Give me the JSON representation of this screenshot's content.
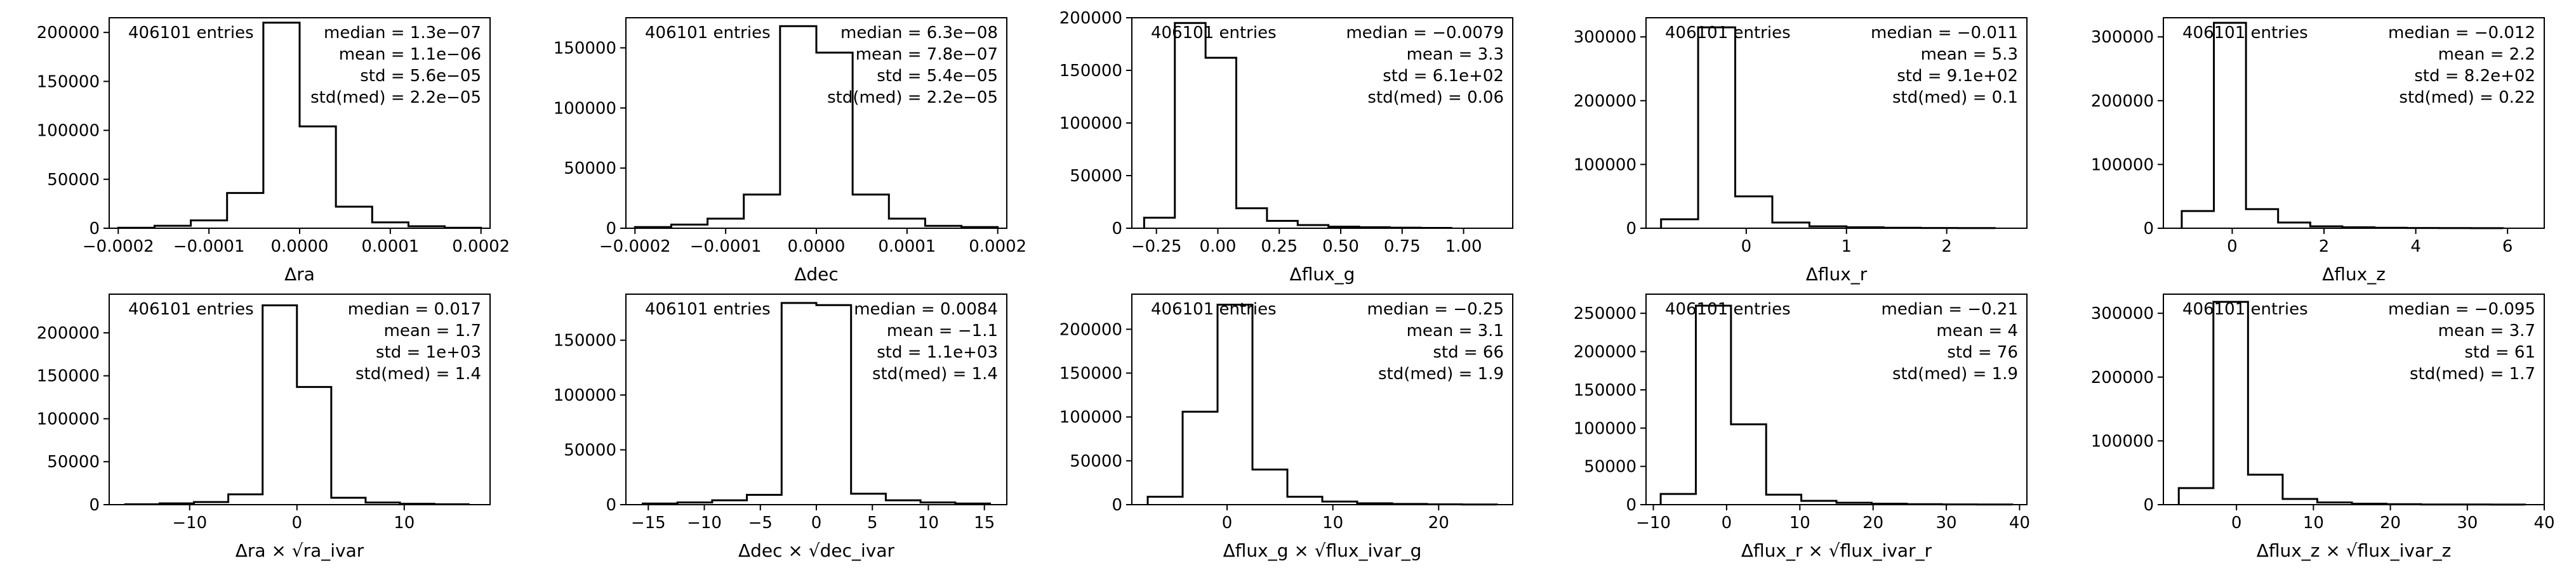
{
  "chart_data": [
    {
      "type": "histogram",
      "entries_text": "406101 entries",
      "stats": [
        "median = 1.3e−07",
        "mean = 1.1e−06",
        "std = 5.6e−05",
        "std(med) = 2.2e−05"
      ],
      "xlabel": "Δra",
      "xlim": [
        -0.00021,
        0.00021
      ],
      "ylim": [
        0,
        215000
      ],
      "xticks": [
        -0.0002,
        -0.0001,
        0,
        0.0001,
        0.0002
      ],
      "xtick_labels": [
        "−0.0002",
        "−0.0001",
        "0.0000",
        "0.0001",
        "0.0002"
      ],
      "yticks": [
        0,
        50000,
        100000,
        150000,
        200000
      ],
      "ytick_labels": [
        "0",
        "50000",
        "100000",
        "150000",
        "200000"
      ],
      "bin_edges": [
        -0.0002,
        -0.00016,
        -0.00012,
        -8e-05,
        -4e-05,
        0,
        4e-05,
        8e-05,
        0.00012,
        0.00016,
        0.0002
      ],
      "counts": [
        500,
        2500,
        8000,
        36000,
        210000,
        104000,
        22000,
        6000,
        2000,
        500
      ]
    },
    {
      "type": "histogram",
      "entries_text": "406101 entries",
      "stats": [
        "median = 6.3e−08",
        "mean = 7.8e−07",
        "std = 5.4e−05",
        "std(med) = 2.2e−05"
      ],
      "xlabel": "Δdec",
      "xlim": [
        -0.00021,
        0.00021
      ],
      "ylim": [
        0,
        175000
      ],
      "xticks": [
        -0.0002,
        -0.0001,
        0,
        0.0001,
        0.0002
      ],
      "xtick_labels": [
        "−0.0002",
        "−0.0001",
        "0.0000",
        "0.0001",
        "0.0002"
      ],
      "yticks": [
        0,
        50000,
        100000,
        150000
      ],
      "ytick_labels": [
        "0",
        "50000",
        "100000",
        "150000"
      ],
      "bin_edges": [
        -0.0002,
        -0.00016,
        -0.00012,
        -8e-05,
        -4e-05,
        0,
        4e-05,
        8e-05,
        0.00012,
        0.00016,
        0.0002
      ],
      "counts": [
        1000,
        3000,
        8000,
        28000,
        168000,
        146000,
        28000,
        8000,
        2000,
        1000
      ]
    },
    {
      "type": "histogram",
      "entries_text": "406101 entries",
      "stats": [
        "median = −0.0079",
        "mean = 3.3",
        "std = 6.1e+02",
        "std(med) = 0.06"
      ],
      "xlabel": "Δflux_g",
      "xlim": [
        -0.35,
        1.2
      ],
      "ylim": [
        0,
        200000
      ],
      "xticks": [
        -0.25,
        0,
        0.25,
        0.5,
        0.75,
        1.0
      ],
      "xtick_labels": [
        "−0.25",
        "0.00",
        "0.25",
        "0.50",
        "0.75",
        "1.00"
      ],
      "yticks": [
        0,
        50000,
        100000,
        150000,
        200000
      ],
      "ytick_labels": [
        "0",
        "50000",
        "100000",
        "150000",
        "200000"
      ],
      "bin_edges": [
        -0.3,
        -0.175,
        -0.05,
        0.075,
        0.2,
        0.325,
        0.45,
        0.575,
        0.7,
        0.825,
        0.95
      ],
      "counts": [
        10000,
        195000,
        162000,
        19000,
        7000,
        3000,
        1500,
        1000,
        500,
        300
      ]
    },
    {
      "type": "histogram",
      "entries_text": "406101 entries",
      "stats": [
        "median = −0.011",
        "mean = 5.3",
        "std = 9.1e+02",
        "std(med) = 0.1"
      ],
      "xlabel": "Δflux_r",
      "xlim": [
        -1.0,
        2.8
      ],
      "ylim": [
        0,
        330000
      ],
      "xticks": [
        0,
        1,
        2
      ],
      "xtick_labels": [
        "0",
        "1",
        "2"
      ],
      "yticks": [
        0,
        100000,
        200000,
        300000
      ],
      "ytick_labels": [
        "0",
        "100000",
        "200000",
        "300000"
      ],
      "bin_edges": [
        -0.85,
        -0.48,
        -0.11,
        0.26,
        0.63,
        1.0,
        1.37,
        1.74,
        2.11,
        2.48
      ],
      "counts": [
        14000,
        315000,
        50000,
        9000,
        3000,
        1500,
        800,
        400,
        200
      ]
    },
    {
      "type": "histogram",
      "entries_text": "406101 entries",
      "stats": [
        "median = −0.012",
        "mean = 2.2",
        "std = 8.2e+02",
        "std(med) = 0.22"
      ],
      "xlabel": "Δflux_z",
      "xlim": [
        -1.5,
        6.8
      ],
      "ylim": [
        0,
        330000
      ],
      "xticks": [
        0,
        2,
        4,
        6
      ],
      "xtick_labels": [
        "0",
        "2",
        "4",
        "6"
      ],
      "yticks": [
        0,
        100000,
        200000,
        300000
      ],
      "ytick_labels": [
        "0",
        "100000",
        "200000",
        "300000"
      ],
      "bin_edges": [
        -1.1,
        -0.4,
        0.3,
        1.0,
        1.7,
        2.4,
        3.1,
        3.8,
        4.5,
        5.2,
        5.9
      ],
      "counts": [
        27000,
        322000,
        30000,
        9000,
        3000,
        1500,
        800,
        400,
        200,
        100
      ]
    },
    {
      "type": "histogram",
      "entries_text": "406101 entries",
      "stats": [
        "median = 0.017",
        "mean = 1.7",
        "std = 1e+03",
        "std(med) = 1.4"
      ],
      "xlabel": "Δra × √ra_ivar",
      "xlim": [
        -17.5,
        18
      ],
      "ylim": [
        0,
        245000
      ],
      "xticks": [
        -10,
        0,
        10
      ],
      "xtick_labels": [
        "−10",
        "0",
        "10"
      ],
      "yticks": [
        0,
        50000,
        100000,
        150000,
        200000
      ],
      "ytick_labels": [
        "0",
        "50000",
        "100000",
        "150000",
        "200000"
      ],
      "bin_edges": [
        -16,
        -12.8,
        -9.6,
        -6.4,
        -3.2,
        0,
        3.2,
        6.4,
        9.6,
        12.8,
        16
      ],
      "counts": [
        500,
        1500,
        3000,
        12000,
        232000,
        137000,
        8000,
        2500,
        1000,
        500
      ]
    },
    {
      "type": "histogram",
      "entries_text": "406101 entries",
      "stats": [
        "median = 0.0084",
        "mean = −1.1",
        "std = 1.1e+03",
        "std(med) = 1.4"
      ],
      "xlabel": "Δdec × √dec_ivar",
      "xlim": [
        -17,
        17
      ],
      "ylim": [
        0,
        192000
      ],
      "xticks": [
        -15,
        -10,
        -5,
        0,
        5,
        10,
        15
      ],
      "xtick_labels": [
        "−15",
        "−10",
        "−5",
        "0",
        "5",
        "10",
        "15"
      ],
      "yticks": [
        0,
        50000,
        100000,
        150000
      ],
      "ytick_labels": [
        "0",
        "50000",
        "100000",
        "150000"
      ],
      "bin_edges": [
        -15.5,
        -12.4,
        -9.3,
        -6.2,
        -3.1,
        0,
        3.1,
        6.2,
        9.3,
        12.4,
        15.5
      ],
      "counts": [
        1000,
        2000,
        4000,
        9000,
        184000,
        182000,
        10000,
        4000,
        2000,
        1000
      ]
    },
    {
      "type": "histogram",
      "entries_text": "406101 entries",
      "stats": [
        "median = −0.25",
        "mean = 3.1",
        "std = 66",
        "std(med) = 1.9"
      ],
      "xlabel": "Δflux_g × √flux_ivar_g",
      "xlim": [
        -9,
        27
      ],
      "ylim": [
        0,
        240000
      ],
      "xticks": [
        0,
        10,
        20
      ],
      "xtick_labels": [
        "0",
        "10",
        "20"
      ],
      "yticks": [
        0,
        50000,
        100000,
        150000,
        200000
      ],
      "ytick_labels": [
        "0",
        "50000",
        "100000",
        "150000",
        "200000"
      ],
      "bin_edges": [
        -7.5,
        -4.2,
        -0.9,
        2.4,
        5.7,
        9.0,
        12.3,
        15.6,
        18.9,
        22.2,
        25.5
      ],
      "counts": [
        9000,
        106000,
        228000,
        40000,
        9000,
        3500,
        1500,
        800,
        400,
        200
      ]
    },
    {
      "type": "histogram",
      "entries_text": "406101 entries",
      "stats": [
        "median = −0.21",
        "mean = 4",
        "std = 76",
        "std(med) = 1.9"
      ],
      "xlabel": "Δflux_r × √flux_ivar_r",
      "xlim": [
        -11,
        41
      ],
      "ylim": [
        0,
        275000
      ],
      "xticks": [
        -10,
        0,
        10,
        20,
        30,
        40
      ],
      "xtick_labels": [
        "−10",
        "0",
        "10",
        "20",
        "30",
        "40"
      ],
      "yticks": [
        0,
        50000,
        100000,
        150000,
        200000,
        250000
      ],
      "ytick_labels": [
        "0",
        "50000",
        "100000",
        "150000",
        "200000",
        "250000"
      ],
      "bin_edges": [
        -9,
        -4.2,
        0.6,
        5.4,
        10.2,
        15.0,
        19.8,
        24.6,
        29.4,
        34.2,
        39
      ],
      "counts": [
        14000,
        260000,
        105000,
        13000,
        5000,
        2500,
        1200,
        600,
        300,
        200
      ]
    },
    {
      "type": "histogram",
      "entries_text": "406101 entries",
      "stats": [
        "median = −0.095",
        "mean = 3.7",
        "std = 61",
        "std(med) = 1.7"
      ],
      "xlabel": "Δflux_z × √flux_ivar_z",
      "xlim": [
        -9.5,
        40
      ],
      "ylim": [
        0,
        330000
      ],
      "xticks": [
        0,
        10,
        20,
        30,
        40
      ],
      "xtick_labels": [
        "0",
        "10",
        "20",
        "30",
        "40"
      ],
      "yticks": [
        0,
        100000,
        200000,
        300000
      ],
      "ytick_labels": [
        "0",
        "100000",
        "200000",
        "300000"
      ],
      "bin_edges": [
        -7.5,
        -3.0,
        1.5,
        6.0,
        10.5,
        15.0,
        19.5,
        24.0,
        28.5,
        33.0,
        37.5
      ],
      "counts": [
        26000,
        318000,
        47000,
        9000,
        3500,
        1500,
        700,
        300,
        200,
        100
      ]
    }
  ]
}
